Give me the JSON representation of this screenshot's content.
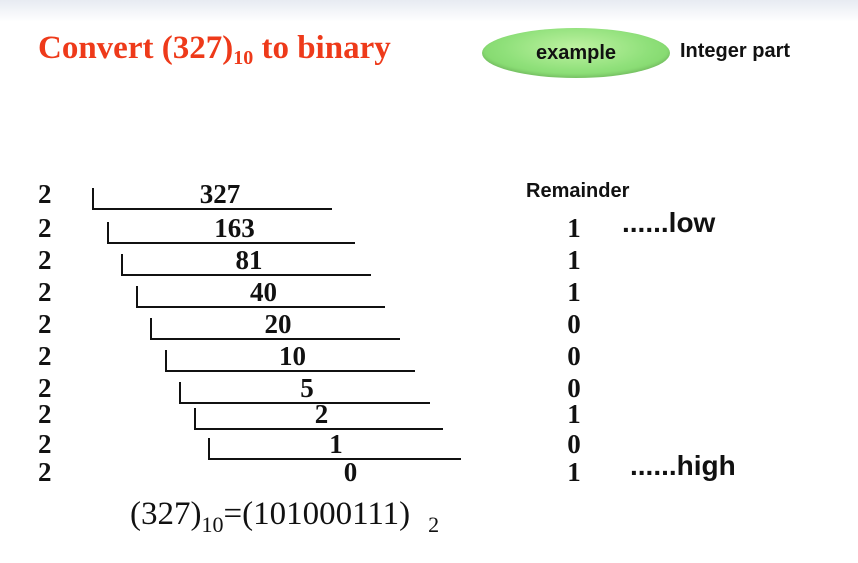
{
  "title": {
    "prefix": "Convert (327)",
    "subscript": "10",
    "suffix": " to binary"
  },
  "badge": {
    "label": "example"
  },
  "section_label": "Integer part",
  "remainder_header": "Remainder",
  "divisor": "2",
  "steps": [
    {
      "quotient": "327",
      "remainder": ""
    },
    {
      "quotient": "163",
      "remainder": "1"
    },
    {
      "quotient": "81",
      "remainder": "1"
    },
    {
      "quotient": "40",
      "remainder": "1"
    },
    {
      "quotient": "20",
      "remainder": "0"
    },
    {
      "quotient": "10",
      "remainder": "0"
    },
    {
      "quotient": "5",
      "remainder": "0"
    },
    {
      "quotient": "2",
      "remainder": "1"
    },
    {
      "quotient": "1",
      "remainder": "0"
    },
    {
      "quotient": "0",
      "remainder": "1"
    }
  ],
  "annotations": {
    "low": "......low",
    "high": "......high"
  },
  "result": {
    "left": "(327)",
    "left_base": "10",
    "equals": "=",
    "right": "(101000111)",
    "right_base": "2"
  }
}
